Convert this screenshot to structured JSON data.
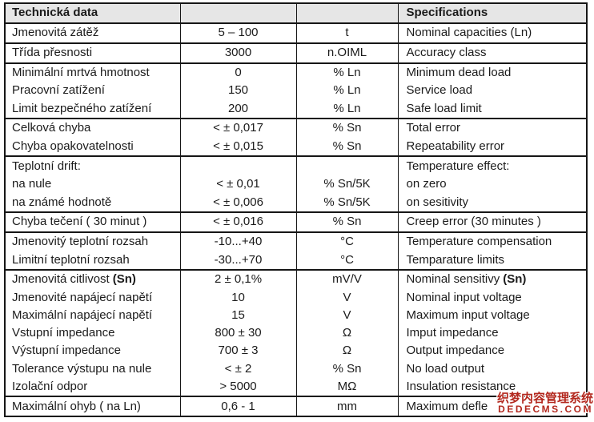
{
  "colors": {
    "header_bg": "#e6e6e6",
    "border": "#161616",
    "watermark_red": "#b3281e"
  },
  "table": {
    "header": {
      "col1": "Technická data",
      "col2": "",
      "col3": "",
      "col4": "Specifications"
    },
    "rows": [
      {
        "cz": "Jmenovitá zátěž",
        "value": "5 – 100",
        "unit": "t",
        "en": "Nominal capacities (Ln)"
      },
      {
        "cz": "Třída přesnosti",
        "value": "3000",
        "unit": "n.OIML",
        "en": "Accuracy class"
      },
      {
        "cz": "Minimální mrtvá hmotnost",
        "value": "0",
        "unit": "% Ln",
        "en": "Minimum dead load"
      },
      {
        "cz": "Pracovní zatížení",
        "value": "150",
        "unit": "% Ln",
        "en": "Service load"
      },
      {
        "cz": "Limit bezpečného zatížení",
        "value": "200",
        "unit": "% Ln",
        "en": "Safe load limit"
      },
      {
        "cz": "Celková chyba",
        "value": "< ± 0,017",
        "unit": "% Sn",
        "en": "Total error"
      },
      {
        "cz": "Chyba opakovatelnosti",
        "value": "< ± 0,015",
        "unit": "% Sn",
        "en": "Repeatability error"
      },
      {
        "cz": "Teplotní drift:",
        "value": "",
        "unit": "",
        "en": "Temperature effect:"
      },
      {
        "cz": "na nule",
        "value": "< ± 0,01",
        "unit": "% Sn/5K",
        "en": "on zero"
      },
      {
        "cz": "na známé hodnotě",
        "value": "< ± 0,006",
        "unit": "% Sn/5K",
        "en": "on sesitivity"
      },
      {
        "cz": "Chyba tečení ( 30 minut )",
        "value": "< ± 0,016",
        "unit": "% Sn",
        "en": "Creep error (30 minutes )"
      },
      {
        "cz": "Jmenovitý teplotní rozsah",
        "value": "-10...+40",
        "unit": "°C",
        "en": "Temperature compensation"
      },
      {
        "cz": "Limitní teplotní rozsah",
        "value": "-30...+70",
        "unit": "°C",
        "en": "Temparature limits"
      },
      {
        "cz": "Jmenovitá citlivost",
        "cz_bold": "(Sn)",
        "value": "2 ± 0,1%",
        "unit": "mV/V",
        "en": "Nominal sensitivy",
        "en_bold": "(Sn)"
      },
      {
        "cz": "Jmenovité napájecí napětí",
        "value": "10",
        "unit": "V",
        "en": "Nominal input voltage"
      },
      {
        "cz": "Maximální napájecí napětí",
        "value": "15",
        "unit": "V",
        "en": "Maximum input voltage"
      },
      {
        "cz": "Vstupní impedance",
        "value": "800 ± 30",
        "unit": "Ω",
        "en": "Imput impedance"
      },
      {
        "cz": "Výstupní impedance",
        "value": "700 ± 3",
        "unit": "Ω",
        "en": "Output impedance"
      },
      {
        "cz": "Tolerance výstupu na nule",
        "value": "< ± 2",
        "unit": "% Sn",
        "en": "No load output"
      },
      {
        "cz": "Izolační odpor",
        "value": "> 5000",
        "unit": "MΩ",
        "en": "Insulation resistance"
      },
      {
        "cz": "Maximální ohyb ( na Ln)",
        "value": "0,6 - 1",
        "unit": "mm",
        "en": "Maximum defle"
      }
    ]
  },
  "watermark": {
    "line1": "织梦内容管理系统",
    "line2": "DEDECMS.COM"
  }
}
